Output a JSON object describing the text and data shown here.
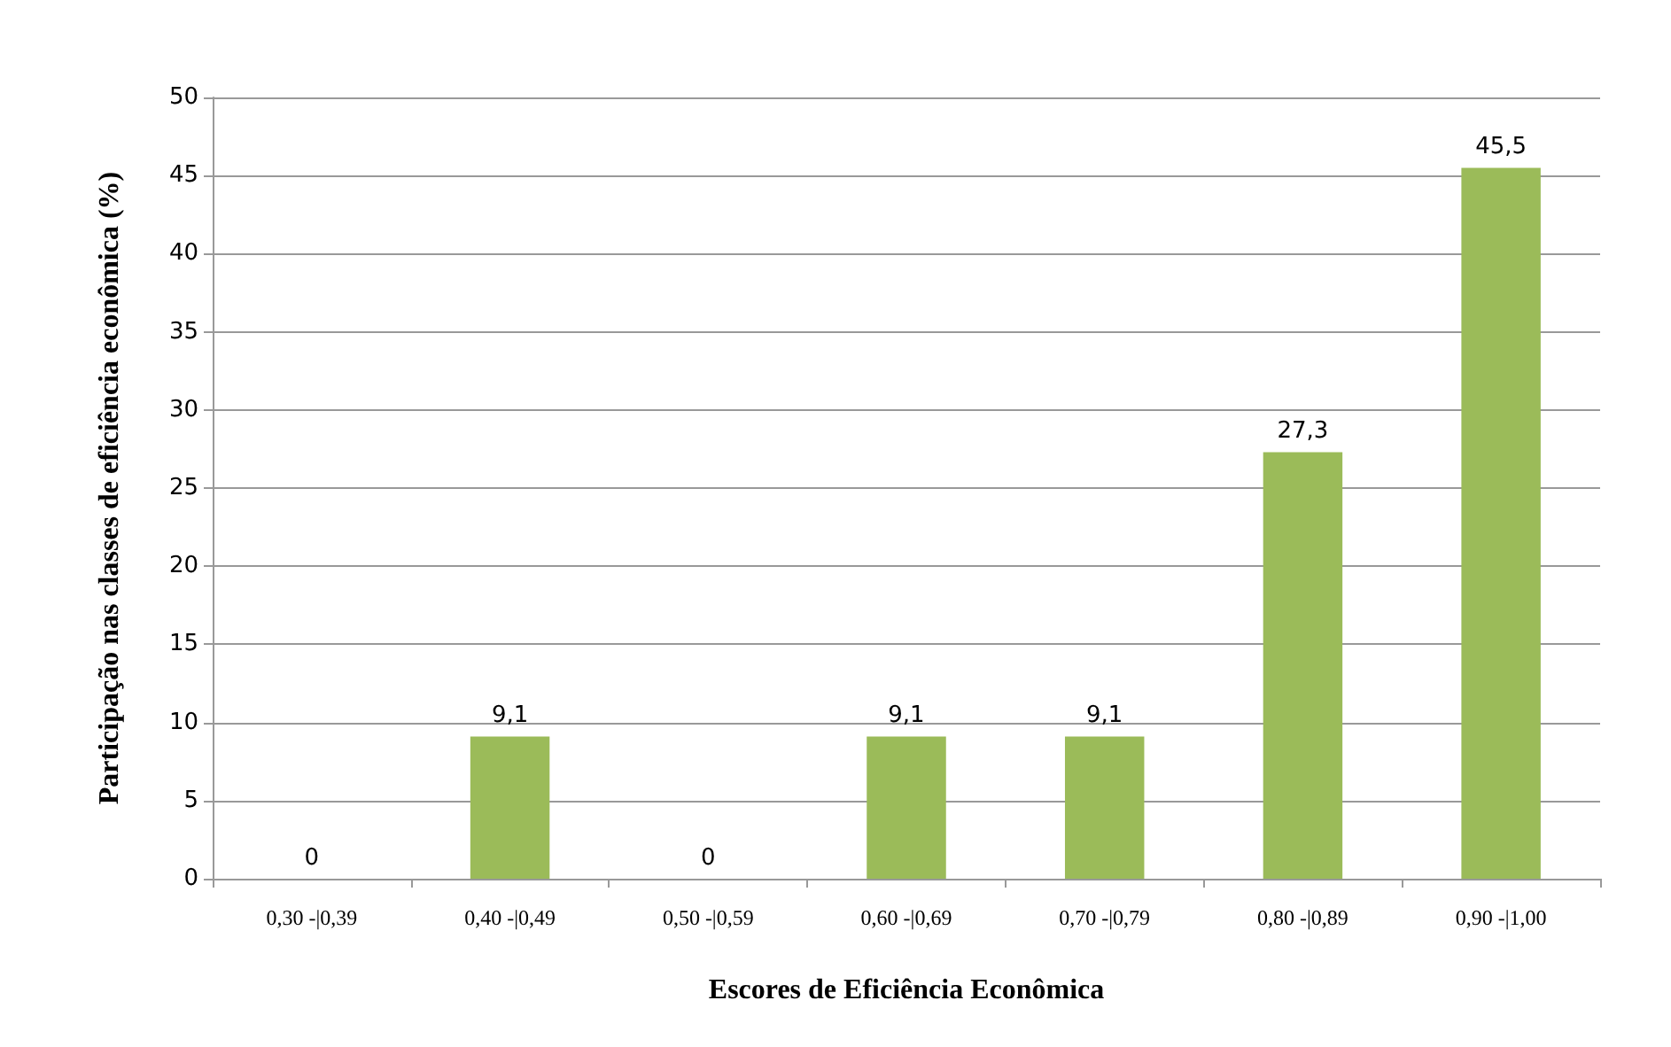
{
  "chart_data": {
    "type": "bar",
    "xlabel": "Escores de Eficiência Econômica",
    "ylabel": "Participação nas classes de eficiência econômica (%)",
    "categories": [
      "0,30 -|0,39",
      "0,40 -|0,49",
      "0,50 -|0,59",
      "0,60 -|0,69",
      "0,70 -|0,79",
      "0,80 -|0,89",
      "0,90 -|1,00"
    ],
    "values": [
      0,
      9.1,
      0,
      9.1,
      9.1,
      27.3,
      45.5
    ],
    "value_labels": [
      "0",
      "9,1",
      "0",
      "9,1",
      "9,1",
      "27,3",
      "45,5"
    ],
    "color": "#9bbb59",
    "ylim": [
      0,
      50
    ],
    "yticks": [
      0,
      5,
      10,
      15,
      20,
      25,
      30,
      35,
      40,
      45,
      50
    ],
    "grid": "y"
  }
}
